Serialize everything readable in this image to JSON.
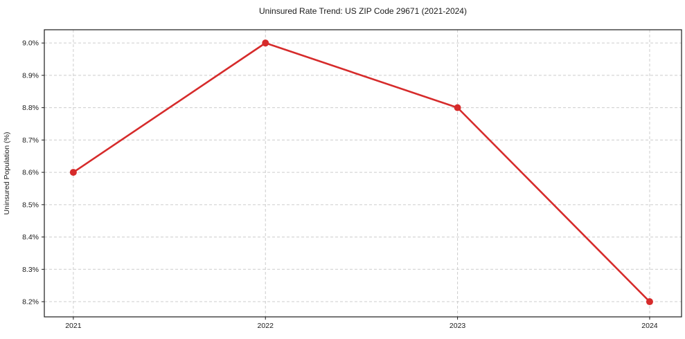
{
  "figure": {
    "background": "#ffffff"
  },
  "chart_data": {
    "type": "line",
    "title": "Uninsured Rate Trend: US ZIP Code 29671 (2021-2024)",
    "xlabel": "",
    "ylabel": "Uninsured Population (%)",
    "x": [
      2021,
      2022,
      2023,
      2024
    ],
    "x_tick_labels": [
      "2021",
      "2022",
      "2023",
      "2024"
    ],
    "values": [
      8.6,
      9.0,
      8.8,
      8.2
    ],
    "y_tick_values": [
      8.2,
      8.3,
      8.4,
      8.5,
      8.6,
      8.7,
      8.8,
      8.9,
      9.0
    ],
    "y_tick_labels": [
      "8.2%",
      "8.3%",
      "8.4%",
      "8.5%",
      "8.6%",
      "8.7%",
      "8.8%",
      "8.9%",
      "9.0%"
    ],
    "xlim": [
      2020.849,
      2024.166
    ],
    "ylim": [
      8.153,
      9.041
    ],
    "grid": true,
    "legend": "none",
    "colors": {
      "line": "#d62b2b",
      "marker": "#d62b2b",
      "grid": "#cccccc",
      "axis": "#1a1a1a",
      "text": "#1a1a1a"
    }
  }
}
